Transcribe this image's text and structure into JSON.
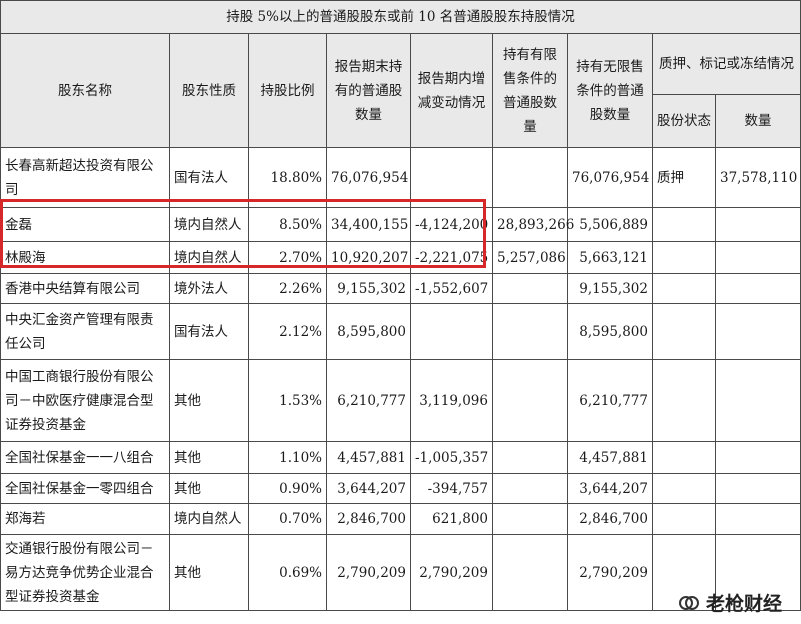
{
  "table": {
    "title": "持股 5%以上的普通股股东或前 10 名普通股股东持股情况",
    "headers": {
      "name": "股东名称",
      "nature": "股东性质",
      "ratio": "持股比例",
      "period_end": "报告期末持有的普通股数量",
      "change": "报告期内增减变动情况",
      "restricted": "持有有限售条件的普通股数量",
      "unrestricted": "持有无限售条件的普通股数量",
      "pledge_group": "质押、标记或冻结情况",
      "pledge_status": "股份状态",
      "pledge_qty": "数量"
    },
    "rows": [
      {
        "name": "长春高新超达投资有限公司",
        "nature": "国有法人",
        "ratio": "18.80%",
        "period_end": "76,076,954",
        "change": "",
        "restricted": "",
        "unrestricted": "76,076,954",
        "status": "质押",
        "qty": "37,578,110"
      },
      {
        "name": "金磊",
        "nature": "境内自然人",
        "ratio": "8.50%",
        "period_end": "34,400,155",
        "change": "-4,124,200",
        "restricted": "28,893,266",
        "unrestricted": "5,506,889",
        "status": "",
        "qty": ""
      },
      {
        "name": "林殿海",
        "nature": "境内自然人",
        "ratio": "2.70%",
        "period_end": "10,920,207",
        "change": "-2,221,075",
        "restricted": "5,257,086",
        "unrestricted": "5,663,121",
        "status": "",
        "qty": ""
      },
      {
        "name": "香港中央结算有限公司",
        "nature": "境外法人",
        "ratio": "2.26%",
        "period_end": "9,155,302",
        "change": "-1,552,607",
        "restricted": "",
        "unrestricted": "9,155,302",
        "status": "",
        "qty": ""
      },
      {
        "name": "中央汇金资产管理有限责任公司",
        "nature": "国有法人",
        "ratio": "2.12%",
        "period_end": "8,595,800",
        "change": "",
        "restricted": "",
        "unrestricted": "8,595,800",
        "status": "",
        "qty": ""
      },
      {
        "name": "中国工商银行股份有限公司－中欧医疗健康混合型证券投资基金",
        "nature": "其他",
        "ratio": "1.53%",
        "period_end": "6,210,777",
        "change": "3,119,096",
        "restricted": "",
        "unrestricted": "6,210,777",
        "status": "",
        "qty": ""
      },
      {
        "name": "全国社保基金一一八组合",
        "nature": "其他",
        "ratio": "1.10%",
        "period_end": "4,457,881",
        "change": "-1,005,357",
        "restricted": "",
        "unrestricted": "4,457,881",
        "status": "",
        "qty": ""
      },
      {
        "name": "全国社保基金一零四组合",
        "nature": "其他",
        "ratio": "0.90%",
        "period_end": "3,644,207",
        "change": "-394,757",
        "restricted": "",
        "unrestricted": "3,644,207",
        "status": "",
        "qty": ""
      },
      {
        "name": "郑海若",
        "nature": "境内自然人",
        "ratio": "0.70%",
        "period_end": "2,846,700",
        "change": "621,800",
        "restricted": "",
        "unrestricted": "2,846,700",
        "status": "",
        "qty": ""
      },
      {
        "name": "交通银行股份有限公司－易方达竞争优势企业混合型证券投资基金",
        "nature": "其他",
        "ratio": "0.69%",
        "period_end": "2,790,209",
        "change": "2,790,209",
        "restricted": "",
        "unrestricted": "2,790,209",
        "status": "",
        "qty": ""
      }
    ]
  },
  "highlight": {
    "color": "#d62828"
  },
  "watermark": {
    "text": "老枪财经",
    "icon": "wechat-channel-icon"
  }
}
